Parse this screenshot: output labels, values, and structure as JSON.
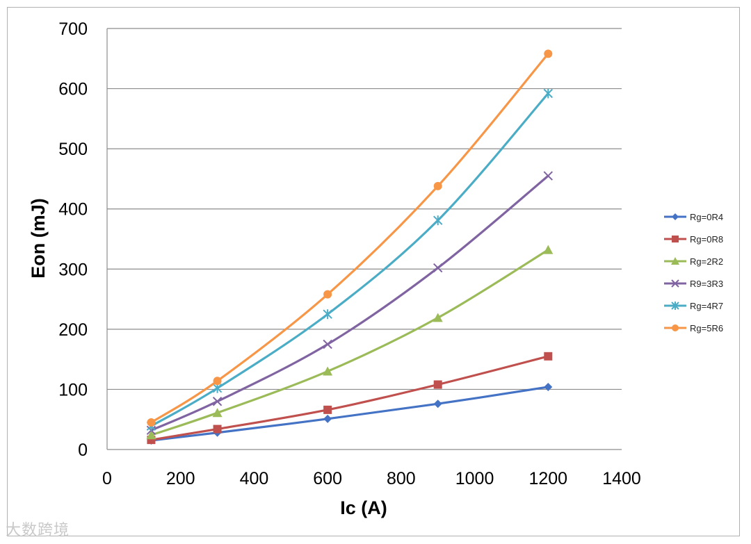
{
  "chart_data": {
    "type": "line",
    "title": "",
    "xlabel": "Ic (A)",
    "ylabel": "Eon (mJ)",
    "xlim": [
      0,
      1400
    ],
    "ylim": [
      0,
      700
    ],
    "xticks": [
      0,
      200,
      400,
      600,
      800,
      1000,
      1200,
      1400
    ],
    "yticks": [
      0,
      100,
      200,
      300,
      400,
      500,
      600,
      700
    ],
    "grid": "horizontal",
    "legend_position": "right",
    "x": [
      120,
      300,
      600,
      900,
      1200
    ],
    "series": [
      {
        "name": "Rg=0R4",
        "color": "#4472c4",
        "marker": "diamond",
        "values": [
          15,
          28,
          51,
          76,
          104
        ]
      },
      {
        "name": "Rg=0R8",
        "color": "#c0504d",
        "marker": "square",
        "values": [
          16,
          34,
          66,
          108,
          155
        ]
      },
      {
        "name": "Rg=2R2",
        "color": "#9bbb59",
        "marker": "triangle",
        "values": [
          24,
          61,
          130,
          219,
          332
        ]
      },
      {
        "name": "R9=3R3",
        "color": "#8064a2",
        "marker": "x",
        "values": [
          32,
          80,
          175,
          302,
          455
        ]
      },
      {
        "name": "Rg=4R7",
        "color": "#4bacc6",
        "marker": "star",
        "values": [
          39,
          102,
          225,
          381,
          592
        ]
      },
      {
        "name": "Rg=5R6",
        "color": "#f79646",
        "marker": "circle",
        "values": [
          45,
          114,
          258,
          438,
          658
        ]
      }
    ]
  },
  "watermark": "大数跨境"
}
